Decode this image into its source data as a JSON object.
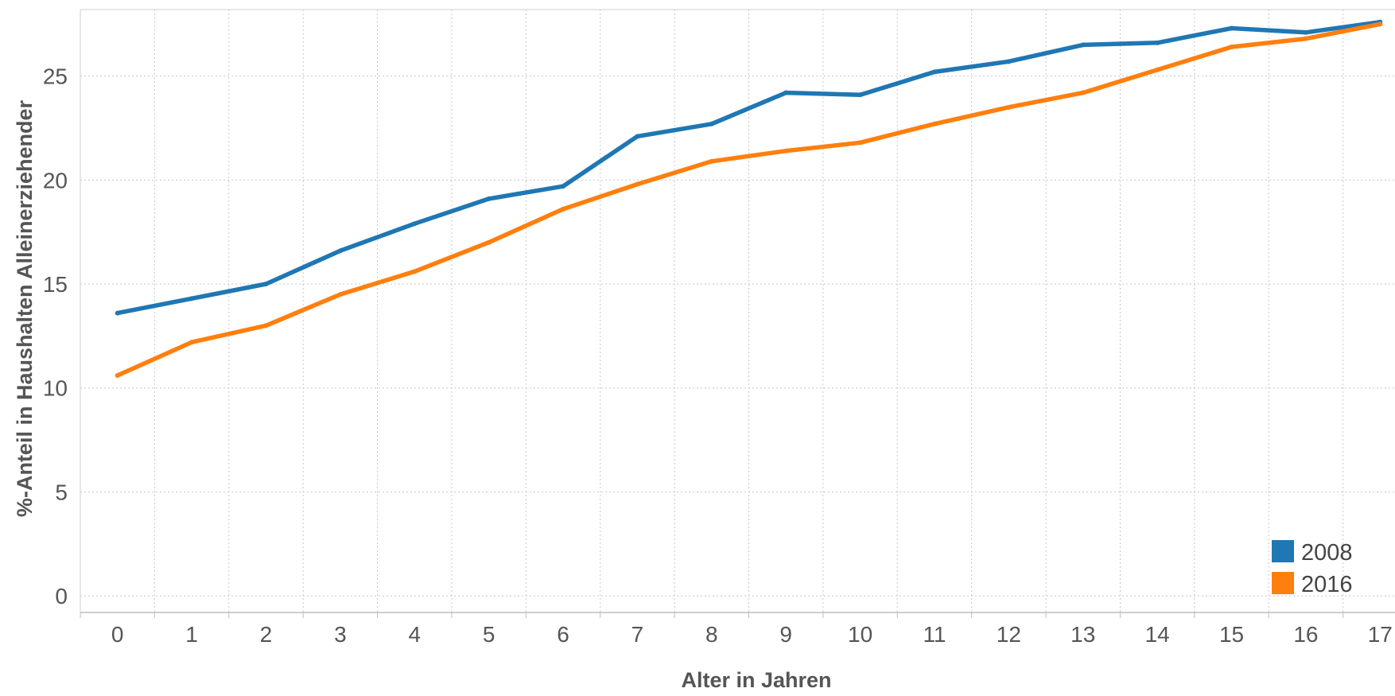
{
  "chart_data": {
    "type": "line",
    "xlabel": "Alter in Jahren",
    "ylabel": "%-Anteil in Haushalten Alleinerziehender",
    "x": [
      0,
      1,
      2,
      3,
      4,
      5,
      6,
      7,
      8,
      9,
      10,
      11,
      12,
      13,
      14,
      15,
      16,
      17
    ],
    "x_tick_labels": [
      "0",
      "1",
      "2",
      "3",
      "4",
      "5",
      "6",
      "7",
      "8",
      "9",
      "10",
      "11",
      "12",
      "13",
      "14",
      "15",
      "16",
      "17"
    ],
    "y_ticks": [
      0,
      5,
      10,
      15,
      20,
      25
    ],
    "y_tick_labels": [
      "0",
      "5",
      "10",
      "15",
      "20",
      "25"
    ],
    "ylim": [
      -0.8,
      28.2
    ],
    "xlim": [
      -0.5,
      17.2
    ],
    "grid": true,
    "legend_position": "bottom-right",
    "series": [
      {
        "name": "2008",
        "color": "#1f77b4",
        "values": [
          13.6,
          14.3,
          15.0,
          16.6,
          17.9,
          19.1,
          19.7,
          22.1,
          22.7,
          24.2,
          24.1,
          25.2,
          25.7,
          26.5,
          26.6,
          27.3,
          27.1,
          27.6
        ]
      },
      {
        "name": "2016",
        "color": "#ff7f0e",
        "values": [
          10.6,
          12.2,
          13.0,
          14.5,
          15.6,
          17.0,
          18.6,
          19.8,
          20.9,
          21.4,
          21.8,
          22.7,
          23.5,
          24.2,
          25.3,
          26.4,
          26.8,
          27.5
        ]
      }
    ]
  }
}
